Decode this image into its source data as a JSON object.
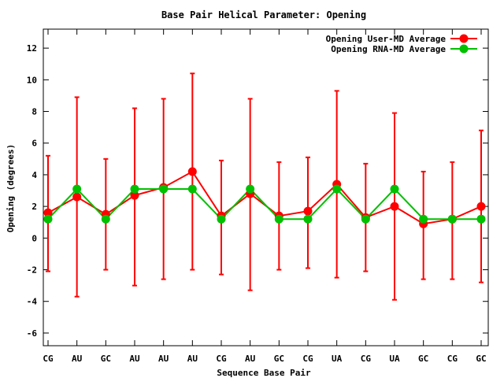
{
  "chart_data": {
    "type": "line",
    "title": "Base Pair Helical Parameter: Opening",
    "xlabel": "Sequence Base Pair",
    "ylabel": "Opening (degrees)",
    "categories": [
      "CG",
      "AU",
      "GC",
      "AU",
      "AU",
      "AU",
      "CG",
      "AU",
      "GC",
      "CG",
      "UA",
      "CG",
      "UA",
      "GC",
      "CG",
      "GC"
    ],
    "ylim": [
      -6.8,
      13.2
    ],
    "yticks": [
      -6,
      -4,
      -2,
      0,
      2,
      4,
      6,
      8,
      10,
      12
    ],
    "grid": false,
    "legend_position": "top-right",
    "series": [
      {
        "name": "Opening User-MD Average",
        "color": "#ff0000",
        "values": [
          1.6,
          2.6,
          1.5,
          2.7,
          3.2,
          4.2,
          1.4,
          2.8,
          1.4,
          1.7,
          3.4,
          1.3,
          2.0,
          0.9,
          1.2,
          2.0
        ],
        "error_low": [
          -2.1,
          -3.7,
          -2.0,
          -3.0,
          -2.6,
          -2.0,
          -2.3,
          -3.3,
          -2.0,
          -1.9,
          -2.5,
          -2.1,
          -3.9,
          -2.6,
          -2.6,
          -2.8
        ],
        "error_high": [
          5.2,
          8.9,
          5.0,
          8.2,
          8.8,
          10.4,
          4.9,
          8.8,
          4.8,
          5.1,
          9.3,
          4.7,
          7.9,
          4.2,
          4.8,
          6.8
        ]
      },
      {
        "name": "Opening RNA-MD Average",
        "color": "#00c000",
        "values": [
          1.2,
          3.1,
          1.2,
          3.1,
          3.1,
          3.1,
          1.2,
          3.1,
          1.2,
          1.2,
          3.1,
          1.2,
          3.1,
          1.2,
          1.2,
          1.2
        ]
      }
    ]
  }
}
